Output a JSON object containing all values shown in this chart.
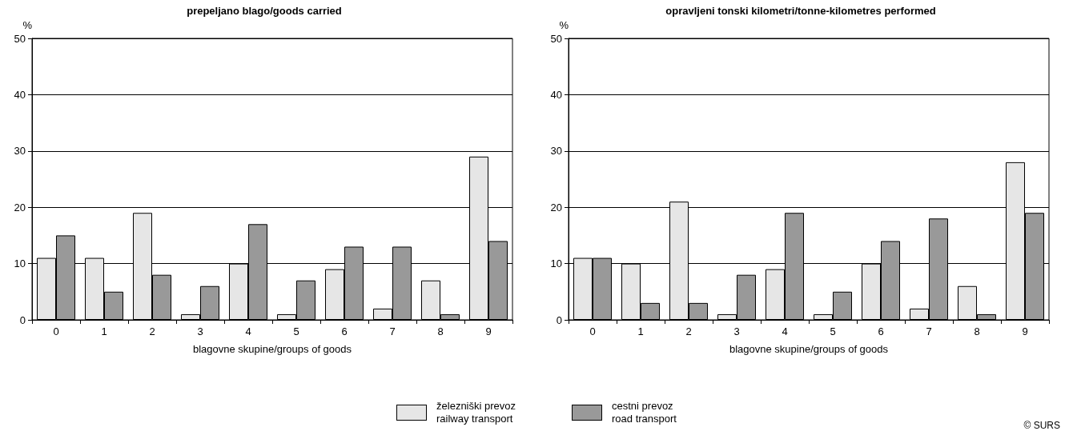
{
  "chart_data": [
    {
      "type": "bar",
      "title": "prepeljano blago/goods carried",
      "xlabel": "blagovne skupine/groups of goods",
      "ylabel": "%",
      "categories": [
        "0",
        "1",
        "2",
        "3",
        "4",
        "5",
        "6",
        "7",
        "8",
        "9"
      ],
      "series": [
        {
          "name": "železniški prevoz\nrailway transport",
          "color": "#e6e6e6",
          "values": [
            11,
            11,
            19,
            1,
            10,
            1,
            9,
            2,
            7,
            29
          ]
        },
        {
          "name": "cestni prevoz\nroad transport",
          "color": "#999999",
          "values": [
            15,
            5,
            8,
            6,
            17,
            7,
            13,
            13,
            1,
            14
          ]
        }
      ],
      "ylim": [
        0,
        50
      ],
      "yticks": [
        0,
        10,
        20,
        30,
        40,
        50
      ],
      "grid": "y",
      "legend": "bottom"
    },
    {
      "type": "bar",
      "title": "opravljeni tonski kilometri/tonne-kilometres performed",
      "xlabel": "blagovne skupine/groups of goods",
      "ylabel": "%",
      "categories": [
        "0",
        "1",
        "2",
        "3",
        "4",
        "5",
        "6",
        "7",
        "8",
        "9"
      ],
      "series": [
        {
          "color": "#e6e6e6",
          "values": [
            11,
            10,
            21,
            1,
            9,
            1,
            10,
            2,
            6,
            28
          ]
        },
        {
          "color": "#999999",
          "values": [
            11,
            3,
            3,
            8,
            19,
            5,
            14,
            18,
            1,
            19
          ]
        }
      ],
      "ylim": [
        0,
        50
      ],
      "yticks": [
        0,
        10,
        20,
        30,
        40,
        50
      ],
      "grid": "y",
      "annotations": [
        "© SURS"
      ]
    }
  ]
}
